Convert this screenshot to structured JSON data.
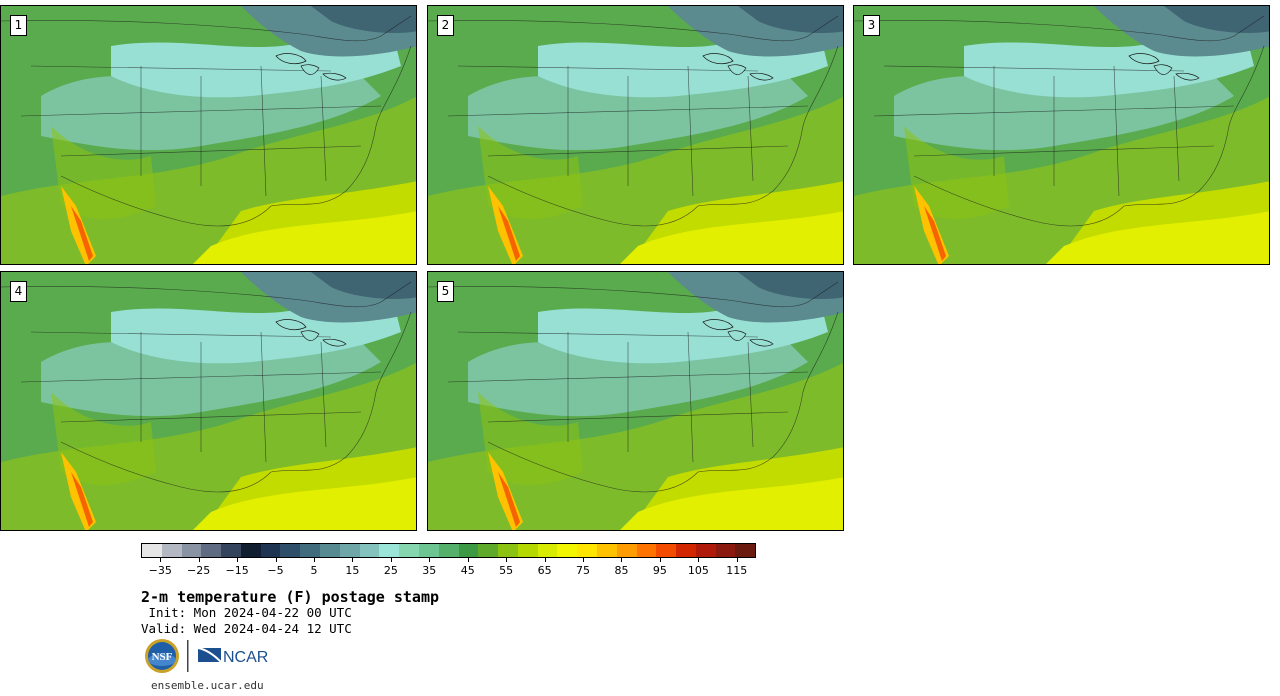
{
  "panels": [
    {
      "label": "1"
    },
    {
      "label": "2"
    },
    {
      "label": "3"
    },
    {
      "label": "4"
    },
    {
      "label": "5"
    }
  ],
  "colorbar": {
    "colors": [
      "#e6e6e6",
      "#b4b8c2",
      "#8a93a3",
      "#5f6b80",
      "#34445c",
      "#101e30",
      "#1e3450",
      "#2e4e6a",
      "#416c7e",
      "#588a92",
      "#6fa7a8",
      "#84c3bd",
      "#9ae4d8",
      "#86d6b0",
      "#6dc591",
      "#55b06c",
      "#3c9944",
      "#5faa2a",
      "#8cc313",
      "#b5d800",
      "#d7ec00",
      "#f2f600",
      "#ffe500",
      "#ffc200",
      "#ff9c00",
      "#ff7300",
      "#f34c00",
      "#d22600",
      "#b01a0a",
      "#8a1a10",
      "#6b1a10"
    ],
    "tick_labels": [
      "−35",
      "−25",
      "−15",
      "−5",
      "5",
      "15",
      "25",
      "35",
      "45",
      "55",
      "65",
      "75",
      "85",
      "95",
      "105",
      "115"
    ],
    "tick_values": [
      -35,
      -25,
      -15,
      -5,
      5,
      15,
      25,
      35,
      45,
      55,
      65,
      75,
      85,
      95,
      105,
      115
    ],
    "range": [
      -40,
      120
    ]
  },
  "title": "2-m temperature (F) postage stamp",
  "init_line": " Init: Mon 2024-04-22 00 UTC",
  "valid_line": "Valid: Wed 2024-04-24 12 UTC",
  "logos": {
    "nsf": "NSF",
    "ncar": "NCAR"
  },
  "website": "ensemble.ucar.edu"
}
